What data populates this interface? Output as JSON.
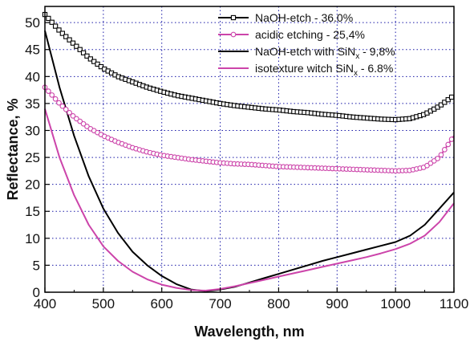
{
  "chart_data": {
    "type": "line",
    "xlabel": "Wavelength, nm",
    "ylabel": "Reflectance, %",
    "xlim": [
      400,
      1100
    ],
    "ylim": [
      0,
      53
    ],
    "xticks": [
      400,
      500,
      600,
      700,
      800,
      900,
      1000,
      1100
    ],
    "yticks": [
      0,
      5,
      10,
      15,
      20,
      25,
      30,
      35,
      40,
      45,
      50
    ],
    "grid": true,
    "legend_position": "top-right",
    "series": [
      {
        "name": "NaOH-etch",
        "suffix": "- 36.0%",
        "subscript": "",
        "color": "#000000",
        "marker": "square",
        "points": [
          [
            400,
            51.5
          ],
          [
            425,
            48.5
          ],
          [
            450,
            46.0
          ],
          [
            475,
            43.5
          ],
          [
            500,
            41.5
          ],
          [
            525,
            40.0
          ],
          [
            550,
            39.0
          ],
          [
            575,
            38.0
          ],
          [
            600,
            37.2
          ],
          [
            625,
            36.5
          ],
          [
            650,
            36.0
          ],
          [
            675,
            35.5
          ],
          [
            700,
            35.0
          ],
          [
            725,
            34.6
          ],
          [
            750,
            34.3
          ],
          [
            775,
            34.0
          ],
          [
            800,
            33.8
          ],
          [
            825,
            33.5
          ],
          [
            850,
            33.3
          ],
          [
            875,
            33.0
          ],
          [
            900,
            32.8
          ],
          [
            925,
            32.5
          ],
          [
            950,
            32.3
          ],
          [
            975,
            32.1
          ],
          [
            1000,
            32.0
          ],
          [
            1025,
            32.2
          ],
          [
            1050,
            33.0
          ],
          [
            1075,
            34.5
          ],
          [
            1100,
            36.5
          ]
        ]
      },
      {
        "name": "acidic etching",
        "suffix": "- 25,4%",
        "subscript": "",
        "color": "#cc44aa",
        "marker": "circle",
        "points": [
          [
            400,
            38.0
          ],
          [
            425,
            35.0
          ],
          [
            450,
            32.5
          ],
          [
            475,
            30.5
          ],
          [
            500,
            29.0
          ],
          [
            525,
            27.8
          ],
          [
            550,
            26.8
          ],
          [
            575,
            26.0
          ],
          [
            600,
            25.4
          ],
          [
            625,
            25.0
          ],
          [
            650,
            24.6
          ],
          [
            675,
            24.3
          ],
          [
            700,
            24.0
          ],
          [
            725,
            23.8
          ],
          [
            750,
            23.7
          ],
          [
            775,
            23.5
          ],
          [
            800,
            23.3
          ],
          [
            825,
            23.2
          ],
          [
            850,
            23.1
          ],
          [
            875,
            23.0
          ],
          [
            900,
            22.9
          ],
          [
            925,
            22.8
          ],
          [
            950,
            22.7
          ],
          [
            975,
            22.6
          ],
          [
            1000,
            22.5
          ],
          [
            1025,
            22.6
          ],
          [
            1050,
            23.2
          ],
          [
            1075,
            25.0
          ],
          [
            1100,
            29.0
          ]
        ]
      },
      {
        "name": "NaOH-etch with SiN",
        "suffix": "- 9,8%",
        "subscript": "x",
        "color": "#000000",
        "marker": "none",
        "points": [
          [
            400,
            48.5
          ],
          [
            425,
            38.0
          ],
          [
            450,
            29.0
          ],
          [
            475,
            21.5
          ],
          [
            500,
            15.5
          ],
          [
            525,
            11.0
          ],
          [
            550,
            7.5
          ],
          [
            575,
            5.0
          ],
          [
            600,
            3.0
          ],
          [
            625,
            1.5
          ],
          [
            650,
            0.5
          ],
          [
            675,
            0.2
          ],
          [
            700,
            0.5
          ],
          [
            725,
            1.0
          ],
          [
            750,
            1.8
          ],
          [
            775,
            2.6
          ],
          [
            800,
            3.4
          ],
          [
            825,
            4.2
          ],
          [
            850,
            5.0
          ],
          [
            875,
            5.8
          ],
          [
            900,
            6.5
          ],
          [
            925,
            7.2
          ],
          [
            950,
            7.9
          ],
          [
            975,
            8.6
          ],
          [
            1000,
            9.3
          ],
          [
            1025,
            10.5
          ],
          [
            1050,
            12.5
          ],
          [
            1075,
            15.5
          ],
          [
            1100,
            18.5
          ]
        ]
      },
      {
        "name": "isotexture witch SiN",
        "suffix": "- 6.8%",
        "subscript": "x",
        "color": "#cc44aa",
        "marker": "none",
        "points": [
          [
            400,
            34.0
          ],
          [
            425,
            25.0
          ],
          [
            450,
            18.0
          ],
          [
            475,
            12.5
          ],
          [
            500,
            8.5
          ],
          [
            525,
            5.8
          ],
          [
            550,
            3.8
          ],
          [
            575,
            2.4
          ],
          [
            600,
            1.4
          ],
          [
            625,
            0.8
          ],
          [
            650,
            0.4
          ],
          [
            675,
            0.3
          ],
          [
            700,
            0.6
          ],
          [
            725,
            1.1
          ],
          [
            750,
            1.7
          ],
          [
            775,
            2.3
          ],
          [
            800,
            2.9
          ],
          [
            825,
            3.5
          ],
          [
            850,
            4.1
          ],
          [
            875,
            4.7
          ],
          [
            900,
            5.3
          ],
          [
            925,
            5.9
          ],
          [
            950,
            6.5
          ],
          [
            975,
            7.2
          ],
          [
            1000,
            8.0
          ],
          [
            1025,
            9.0
          ],
          [
            1050,
            10.5
          ],
          [
            1075,
            13.0
          ],
          [
            1100,
            16.5
          ]
        ]
      }
    ]
  }
}
